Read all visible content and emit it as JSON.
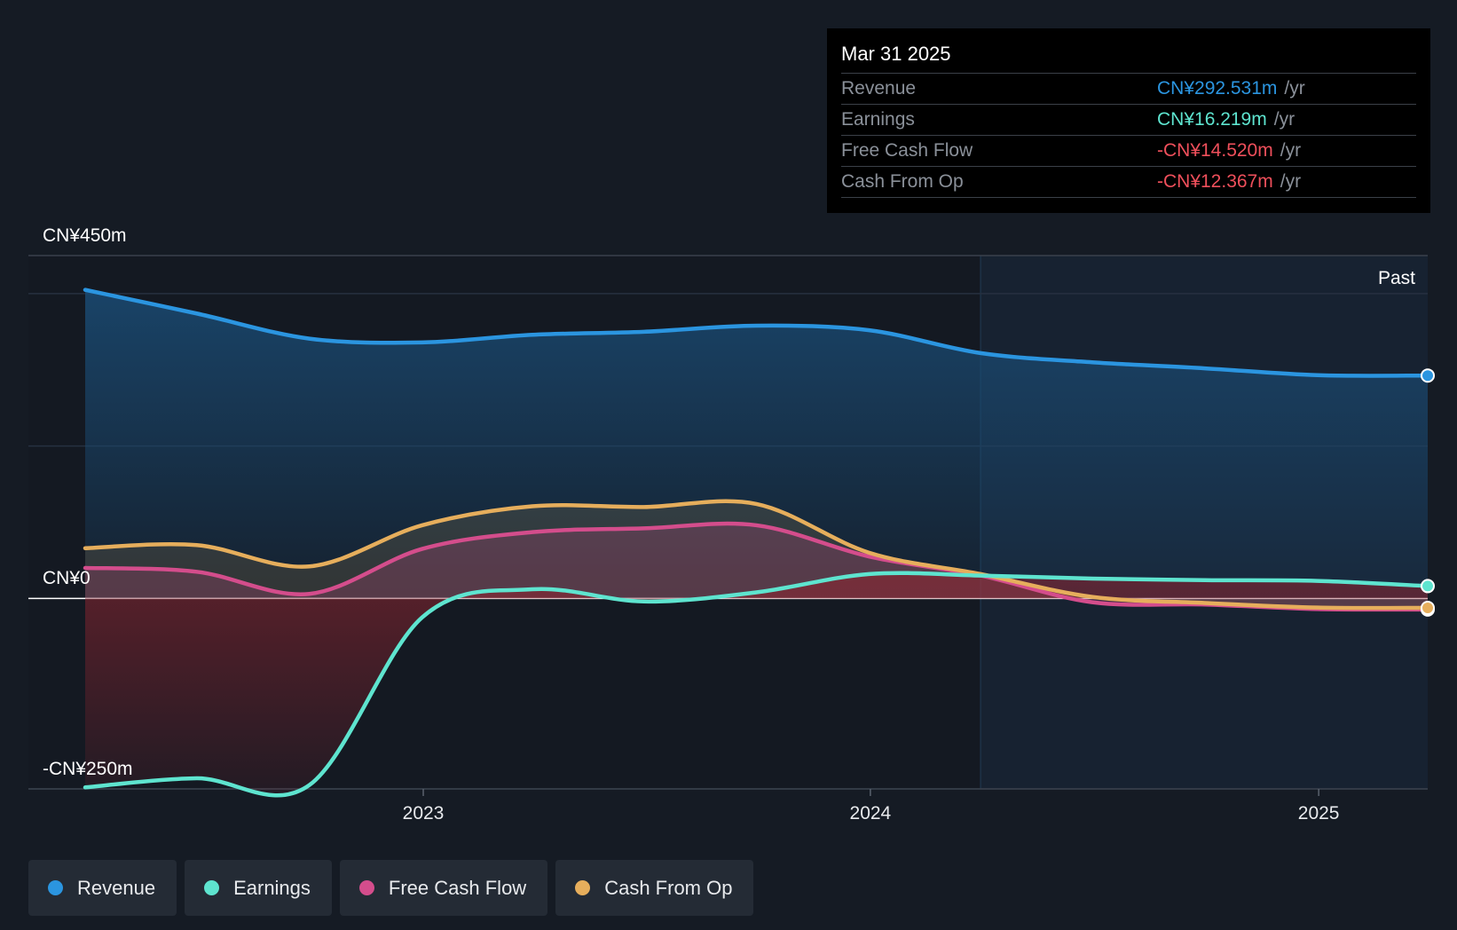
{
  "tooltip": {
    "date": "Mar 31 2025",
    "rows": [
      {
        "label": "Revenue",
        "value": "CN¥292.531m",
        "unit": "/yr",
        "color": "#2b95e0"
      },
      {
        "label": "Earnings",
        "value": "CN¥16.219m",
        "unit": "/yr",
        "color": "#5ee4cf"
      },
      {
        "label": "Free Cash Flow",
        "value": "-CN¥14.520m",
        "unit": "/yr",
        "color": "#ef4f5b"
      },
      {
        "label": "Cash From Op",
        "value": "-CN¥12.367m",
        "unit": "/yr",
        "color": "#ef4f5b"
      }
    ]
  },
  "legend": [
    {
      "label": "Revenue",
      "color": "#2b95e0"
    },
    {
      "label": "Earnings",
      "color": "#5ee4cf"
    },
    {
      "label": "Free Cash Flow",
      "color": "#d44d8c"
    },
    {
      "label": "Cash From Op",
      "color": "#e6ae5c"
    }
  ],
  "chart_data": {
    "type": "line",
    "past_label": "Past",
    "y_top_label": "CN¥450m",
    "y_zero_label": "CN¥0",
    "y_bottom_label": "-CN¥250m",
    "ylim": [
      -250,
      450
    ],
    "xlim": [
      "2022-03-31",
      "2025-03-31"
    ],
    "x_ticks": [
      {
        "date": "2023-01-01",
        "label": "2023"
      },
      {
        "date": "2024-01-01",
        "label": "2024"
      },
      {
        "date": "2025-01-01",
        "label": "2025"
      }
    ],
    "past_start": "2024-03-31",
    "grid": true,
    "legend_position": "bottom",
    "series": [
      {
        "name": "Revenue",
        "color": "#2b95e0",
        "x": [
          "2022-03-31",
          "2022-06-30",
          "2022-09-30",
          "2022-12-31",
          "2023-03-31",
          "2023-06-30",
          "2023-09-30",
          "2023-12-31",
          "2024-03-31",
          "2024-06-30",
          "2024-09-30",
          "2024-12-31",
          "2025-03-31"
        ],
        "y": [
          405,
          374,
          341,
          336,
          346,
          350,
          358,
          352,
          322,
          310,
          302,
          293,
          292.531
        ]
      },
      {
        "name": "Earnings",
        "color": "#5ee4cf",
        "x": [
          "2022-03-31",
          "2022-06-30",
          "2022-09-30",
          "2022-12-31",
          "2023-03-31",
          "2023-06-30",
          "2023-09-30",
          "2023-12-31",
          "2024-03-31",
          "2024-06-30",
          "2024-09-30",
          "2024-12-31",
          "2025-03-31"
        ],
        "y": [
          -248,
          -236,
          -245,
          -25,
          12,
          -4,
          8,
          32,
          30,
          26,
          24,
          23,
          16.219
        ]
      },
      {
        "name": "Free Cash Flow",
        "color": "#d44d8c",
        "x": [
          "2022-03-31",
          "2022-06-30",
          "2022-09-30",
          "2022-12-31",
          "2023-03-31",
          "2023-06-30",
          "2023-09-30",
          "2023-12-31",
          "2024-03-31",
          "2024-06-30",
          "2024-09-30",
          "2024-12-31",
          "2025-03-31"
        ],
        "y": [
          40,
          35,
          6,
          65,
          87,
          92,
          96,
          55,
          30,
          -5,
          -8,
          -14,
          -14.52
        ]
      },
      {
        "name": "Cash From Op",
        "color": "#e6ae5c",
        "x": [
          "2022-03-31",
          "2022-06-30",
          "2022-09-30",
          "2022-12-31",
          "2023-03-31",
          "2023-06-30",
          "2023-09-30",
          "2023-12-31",
          "2024-03-31",
          "2024-06-30",
          "2024-09-30",
          "2024-12-31",
          "2025-03-31"
        ],
        "y": [
          66,
          70,
          42,
          96,
          121,
          120,
          124,
          60,
          32,
          2,
          -6,
          -12,
          -12.367
        ]
      }
    ]
  }
}
